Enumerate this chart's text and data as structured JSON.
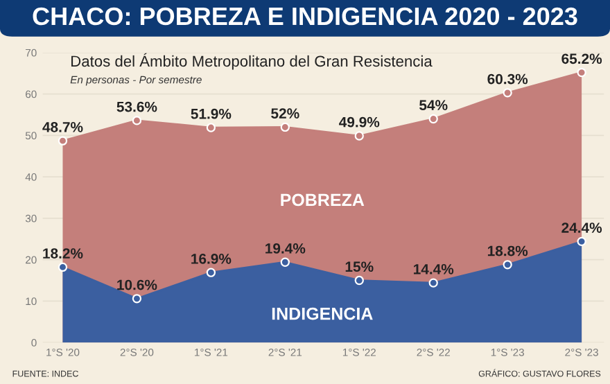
{
  "chart_data": {
    "type": "area",
    "title": "CHACO: POBREZA E INDIGENCIA 2020 - 2023",
    "subtitle": "Datos del Ámbito Metropolitano del Gran Resistencia",
    "annotations": [
      "En personas - Por semestre",
      "FUENTE: INDEC",
      "GRÁFICO: GUSTAVO FLORES"
    ],
    "categories": [
      "1°S '20",
      "2°S '20",
      "1°S '21",
      "2°S '21",
      "1°S '22",
      "2°S '22",
      "1°S '23",
      "2°S '23"
    ],
    "series": [
      {
        "name": "POBREZA",
        "color": "#c47f7b",
        "values": [
          48.7,
          53.6,
          51.9,
          52,
          49.9,
          54,
          60.3,
          65.2
        ],
        "value_labels": [
          "48.7%",
          "53.6%",
          "51.9%",
          "52%",
          "49.9%",
          "54%",
          "60.3%",
          "65.2%"
        ]
      },
      {
        "name": "INDIGENCIA",
        "color": "#3b5fa0",
        "values": [
          18.2,
          10.6,
          16.9,
          19.4,
          15,
          14.4,
          18.8,
          24.4
        ],
        "value_labels": [
          "18.2%",
          "10.6%",
          "16.9%",
          "19.4%",
          "15%",
          "14.4%",
          "18.8%",
          "24.4%"
        ]
      }
    ],
    "ylim": [
      0,
      70
    ],
    "yticks": [
      0,
      10,
      20,
      30,
      40,
      50,
      60,
      70
    ],
    "grid": "y",
    "marker": "circle"
  }
}
